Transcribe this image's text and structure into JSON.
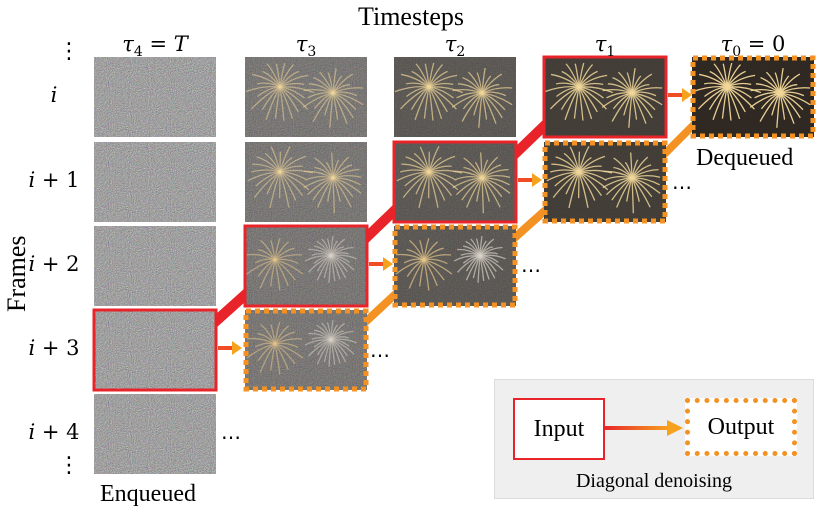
{
  "figure": {
    "top_title": "Timesteps",
    "left_title": "Frames",
    "enqueued_label": "Enqueued",
    "dequeued_label": "Dequeued",
    "timesteps": [
      {
        "sym": "τ",
        "sub": "4",
        "suffix": " = T"
      },
      {
        "sym": "τ",
        "sub": "3",
        "suffix": ""
      },
      {
        "sym": "τ",
        "sub": "2",
        "suffix": ""
      },
      {
        "sym": "τ",
        "sub": "1",
        "suffix": ""
      },
      {
        "sym": "τ",
        "sub": "0",
        "suffix": " = 0"
      }
    ],
    "frames": [
      {
        "base": "i",
        "op": ""
      },
      {
        "base": "i",
        "op": " + 1"
      },
      {
        "base": "i",
        "op": " + 2"
      },
      {
        "base": "i",
        "op": " + 3"
      },
      {
        "base": "i",
        "op": " + 4"
      }
    ],
    "vertical_ellipsis": "⋮",
    "horizontal_ellipsis": "…"
  },
  "legend": {
    "input_label": "Input",
    "output_label": "Output",
    "caption": "Diagonal denoising"
  },
  "colors": {
    "input_border": "#e8242a",
    "output_border": "#f39223",
    "arrow_gradient_start": "#f04d25",
    "arrow_gradient_end": "#f7a21e",
    "noise": "#8f8f8f",
    "legend_bg": "#efefef"
  }
}
